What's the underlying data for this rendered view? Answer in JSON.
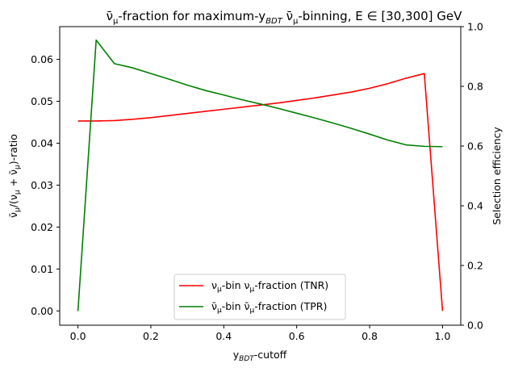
{
  "chart_data": {
    "type": "line",
    "title": {
      "part1": "ν̄",
      "sub1": "μ",
      "part2": "-fraction for maximum-y",
      "sub2": "BDT",
      "part3": " ν̄",
      "sub3": "μ",
      "part4": "-binning, E ∈  [30,300] GeV"
    },
    "xlabel": {
      "main": "y",
      "sub": "BDT",
      "rest": "-cutoff"
    },
    "ylabel_left": {
      "p1": "ν̄",
      "s1": "μ",
      "p2": "/(ν",
      "s2": "μ",
      "p3": " + ν̄",
      "s3": "μ",
      "p4": ")-ratio"
    },
    "ylabel_right": "Selection efficiency",
    "xlim": [
      -0.05,
      1.05
    ],
    "ylim_left": [
      -0.0034,
      0.0678
    ],
    "ylim_right": [
      0.0,
      1.0
    ],
    "x_ticks": [
      "0.0",
      "0.2",
      "0.4",
      "0.6",
      "0.8",
      "1.0"
    ],
    "y_ticks_left": [
      "0.00",
      "0.01",
      "0.02",
      "0.03",
      "0.04",
      "0.05",
      "0.06"
    ],
    "y_ticks_right": [
      "0.0",
      "0.2",
      "0.4",
      "0.6",
      "0.8",
      "1.0"
    ],
    "legend_position": "lower center",
    "x": [
      0.0,
      0.05,
      0.1,
      0.15,
      0.2,
      0.25,
      0.3,
      0.35,
      0.4,
      0.45,
      0.5,
      0.55,
      0.6,
      0.65,
      0.7,
      0.75,
      0.8,
      0.85,
      0.9,
      0.95,
      1.0
    ],
    "series": [
      {
        "name": {
          "p1": "ν",
          "s1": "μ",
          "p2": "-bin ν",
          "s2": "μ",
          "p3": "-fraction (TNR)"
        },
        "color": "#ff0000",
        "axis": "left",
        "values": [
          0.0453,
          0.0453,
          0.0454,
          0.0457,
          0.0461,
          0.0466,
          0.0471,
          0.0476,
          0.0481,
          0.0486,
          0.0491,
          0.0496,
          0.0502,
          0.0508,
          0.0515,
          0.0522,
          0.0531,
          0.0542,
          0.0555,
          0.0566,
          0.0
        ]
      },
      {
        "name": {
          "p1": "ν̄",
          "s1": "μ",
          "p2": "-bin ν̄",
          "s2": "μ",
          "p3": "-fraction (TPR)"
        },
        "color": "#008000",
        "axis": "right",
        "values": [
          0.047,
          0.955,
          0.876,
          0.862,
          0.843,
          0.824,
          0.804,
          0.786,
          0.771,
          0.755,
          0.741,
          0.726,
          0.71,
          0.694,
          0.677,
          0.659,
          0.64,
          0.62,
          0.604,
          0.599,
          0.598
        ],
        "x_override": [
          0.0,
          0.05,
          0.1,
          0.15,
          0.2,
          0.25,
          0.3,
          0.35,
          0.4,
          0.45,
          0.5,
          0.55,
          0.6,
          0.65,
          0.7,
          0.75,
          0.8,
          0.85,
          0.9,
          0.95,
          1.0
        ]
      }
    ],
    "grid": false
  }
}
